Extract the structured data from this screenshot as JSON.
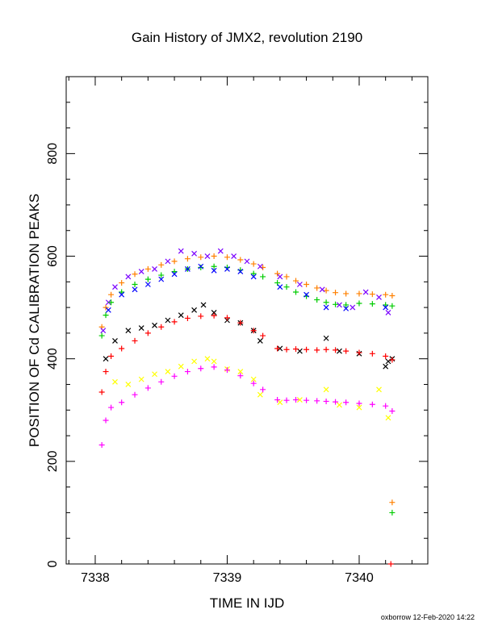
{
  "chart_data": {
    "type": "scatter",
    "title": "Gain History of JMX2, revolution 2190",
    "xlabel": "TIME IN IJD",
    "ylabel": "POSITION OF Cd CALIBRATION PEAKS",
    "xlim": [
      7337.78,
      7340.52
    ],
    "ylim": [
      0,
      950
    ],
    "x_ticks": [
      7338,
      7339,
      7340
    ],
    "y_ticks": [
      0,
      200,
      400,
      600,
      800
    ],
    "grid": false,
    "legend": "none",
    "footer": "oxborrow 12-Feb-2020 14:22",
    "series": [
      {
        "color": "#ff8000",
        "marker": "+",
        "x": [
          7338.05,
          7338.08,
          7338.12,
          7338.2,
          7338.3,
          7338.4,
          7338.5,
          7338.6,
          7338.7,
          7338.8,
          7338.9,
          7339.0,
          7339.1,
          7339.2,
          7339.27,
          7339.38,
          7339.45,
          7339.52,
          7339.6,
          7339.68,
          7339.75,
          7339.82,
          7339.9,
          7340.0,
          7340.1,
          7340.2,
          7340.25,
          7340.25
        ],
        "y": [
          462,
          500,
          525,
          548,
          565,
          575,
          583,
          590,
          595,
          598,
          600,
          598,
          593,
          585,
          578,
          566,
          560,
          552,
          545,
          538,
          533,
          529,
          527,
          527,
          526,
          525,
          523,
          120
        ]
      },
      {
        "color": "#7a00ff",
        "marker": "x",
        "x": [
          7338.06,
          7338.1,
          7338.15,
          7338.25,
          7338.35,
          7338.45,
          7338.55,
          7338.65,
          7338.75,
          7338.85,
          7338.95,
          7339.05,
          7339.15,
          7339.25,
          7339.4,
          7339.55,
          7339.72,
          7339.85,
          7339.95,
          7340.05,
          7340.15,
          7340.22
        ],
        "y": [
          455,
          510,
          540,
          560,
          570,
          575,
          590,
          610,
          605,
          600,
          610,
          600,
          590,
          580,
          560,
          545,
          535,
          505,
          500,
          530,
          520,
          490
        ]
      },
      {
        "color": "#00cc00",
        "marker": "+",
        "x": [
          7338.05,
          7338.08,
          7338.12,
          7338.2,
          7338.3,
          7338.4,
          7338.5,
          7338.6,
          7338.7,
          7338.8,
          7338.9,
          7339.0,
          7339.1,
          7339.2,
          7339.27,
          7339.38,
          7339.45,
          7339.52,
          7339.6,
          7339.68,
          7339.75,
          7339.82,
          7339.9,
          7340.0,
          7340.1,
          7340.2,
          7340.25,
          7340.25
        ],
        "y": [
          445,
          485,
          510,
          530,
          545,
          555,
          563,
          570,
          575,
          578,
          580,
          578,
          573,
          566,
          560,
          548,
          540,
          530,
          522,
          515,
          510,
          506,
          505,
          508,
          507,
          505,
          503,
          100
        ]
      },
      {
        "color": "#0000ff",
        "marker": "x",
        "x": [
          7338.1,
          7338.2,
          7338.3,
          7338.4,
          7338.5,
          7338.6,
          7338.7,
          7338.8,
          7338.9,
          7339.0,
          7339.1,
          7339.2,
          7339.4,
          7339.6,
          7339.75,
          7339.9,
          7340.2
        ],
        "y": [
          495,
          525,
          535,
          545,
          555,
          565,
          575,
          580,
          572,
          575,
          570,
          560,
          540,
          525,
          500,
          498,
          500
        ]
      },
      {
        "color": "#000000",
        "marker": "x",
        "x": [
          7338.08,
          7338.15,
          7338.25,
          7338.35,
          7338.45,
          7338.55,
          7338.65,
          7338.75,
          7338.82,
          7338.9,
          7339.0,
          7339.1,
          7339.2,
          7339.25,
          7339.4,
          7339.55,
          7339.75,
          7339.85,
          7340.0,
          7340.2,
          7340.22,
          7340.25
        ],
        "y": [
          400,
          435,
          455,
          460,
          465,
          475,
          485,
          495,
          505,
          490,
          475,
          470,
          455,
          435,
          420,
          415,
          440,
          415,
          410,
          385,
          395,
          400
        ]
      },
      {
        "color": "#ff0000",
        "marker": "+",
        "x": [
          7338.05,
          7338.08,
          7338.12,
          7338.2,
          7338.3,
          7338.4,
          7338.5,
          7338.6,
          7338.7,
          7338.8,
          7338.9,
          7339.0,
          7339.1,
          7339.2,
          7339.27,
          7339.38,
          7339.45,
          7339.52,
          7339.6,
          7339.68,
          7339.75,
          7339.82,
          7339.9,
          7340.0,
          7340.1,
          7340.2,
          7340.25,
          7340.24
        ],
        "y": [
          335,
          375,
          405,
          420,
          435,
          450,
          462,
          472,
          479,
          483,
          484,
          480,
          470,
          455,
          445,
          420,
          418,
          419,
          418,
          417,
          418,
          417,
          415,
          412,
          410,
          405,
          398,
          0
        ]
      },
      {
        "color": "#ffff00",
        "marker": "x",
        "x": [
          7338.15,
          7338.25,
          7338.35,
          7338.45,
          7338.55,
          7338.65,
          7338.75,
          7338.85,
          7338.9,
          7339.0,
          7339.1,
          7339.2,
          7339.25,
          7339.4,
          7339.55,
          7339.75,
          7339.85,
          7340.0,
          7340.15,
          7340.22
        ],
        "y": [
          355,
          350,
          360,
          370,
          375,
          385,
          395,
          400,
          395,
          380,
          375,
          360,
          330,
          315,
          320,
          340,
          310,
          305,
          340,
          285
        ]
      },
      {
        "color": "#ff00ff",
        "marker": "+",
        "x": [
          7338.05,
          7338.08,
          7338.12,
          7338.2,
          7338.3,
          7338.4,
          7338.5,
          7338.6,
          7338.7,
          7338.8,
          7338.9,
          7339.0,
          7339.1,
          7339.2,
          7339.27,
          7339.38,
          7339.45,
          7339.52,
          7339.6,
          7339.68,
          7339.75,
          7339.82,
          7339.9,
          7340.0,
          7340.1,
          7340.2,
          7340.25
        ],
        "y": [
          232,
          280,
          305,
          315,
          330,
          343,
          355,
          366,
          375,
          381,
          384,
          378,
          367,
          352,
          340,
          320,
          319,
          320,
          319,
          318,
          317,
          316,
          315,
          313,
          311,
          308,
          298
        ]
      }
    ]
  }
}
